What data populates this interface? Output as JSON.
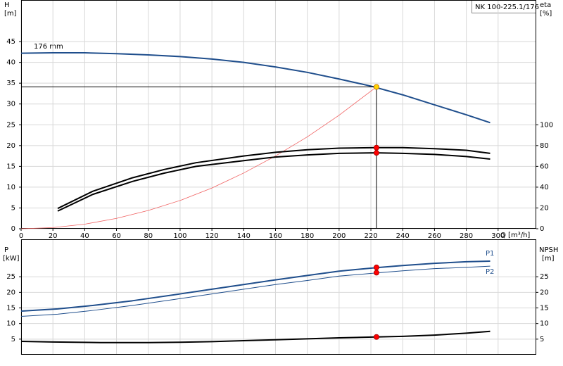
{
  "header": {
    "model": "NK 100-225.1/176"
  },
  "chart_data": [
    {
      "type": "line",
      "ylabel": "H",
      "yunit": "[m]",
      "y2label": "eta",
      "y2unit": "[%]",
      "xlabel": "Q [m³/h]",
      "xlim": [
        0,
        324
      ],
      "xticks": [
        0,
        20,
        40,
        60,
        80,
        100,
        120,
        140,
        160,
        180,
        200,
        220,
        240,
        260,
        280,
        300
      ],
      "ylim": [
        0,
        55
      ],
      "yticks": [
        0,
        5,
        10,
        15,
        20,
        25,
        30,
        35,
        40,
        45
      ],
      "y2lim": [
        0,
        220
      ],
      "y2ticks": [
        0,
        20,
        40,
        60,
        80,
        100
      ],
      "grid": true,
      "series": [
        {
          "name": "176 mm",
          "color": "#1f4e8c",
          "width": 2,
          "x": [
            0,
            20,
            40,
            60,
            80,
            100,
            120,
            140,
            160,
            180,
            200,
            220,
            240,
            260,
            280,
            295
          ],
          "values": [
            42.2,
            42.3,
            42.3,
            42.1,
            41.8,
            41.4,
            40.8,
            40.0,
            38.9,
            37.6,
            36.0,
            34.3,
            32.2,
            29.8,
            27.4,
            25.5
          ]
        },
        {
          "color": "#f06060",
          "width": 0.8,
          "x": [
            0,
            20,
            40,
            60,
            80,
            100,
            120,
            140,
            160,
            180,
            200,
            223.5
          ],
          "values": [
            0,
            0.27,
            1.1,
            2.5,
            4.4,
            6.8,
            9.8,
            13.4,
            17.5,
            22.1,
            27.3,
            34.1
          ]
        },
        {
          "color": "#000000",
          "width": 2,
          "axis": "y2",
          "x": [
            23,
            45,
            70,
            90,
            110,
            140,
            160,
            180,
            200,
            223,
            240,
            260,
            280,
            295
          ],
          "values": [
            19.5,
            36,
            49,
            57,
            63.5,
            70,
            73.5,
            76,
            77.5,
            78,
            78,
            77,
            75.5,
            72.5
          ]
        },
        {
          "color": "#000000",
          "width": 2,
          "axis": "y2",
          "x": [
            23,
            45,
            70,
            90,
            110,
            140,
            160,
            180,
            200,
            223,
            240,
            260,
            280,
            295
          ],
          "values": [
            17,
            33,
            45.5,
            53.5,
            60,
            65.5,
            69,
            71,
            72.5,
            73,
            72.5,
            71.5,
            69.5,
            67
          ]
        },
        {
          "style": "guide",
          "color": "#000000",
          "width": 1,
          "x": [
            0,
            223.5,
            223.5
          ],
          "values": [
            34.1,
            34.1,
            0
          ]
        },
        {
          "style": "markers",
          "color": "#ffd400",
          "x": [
            223.5
          ],
          "values": [
            34.1
          ]
        },
        {
          "style": "markers",
          "color": "#ff0000",
          "axis": "y2",
          "x": [
            223.5,
            223.5
          ],
          "values": [
            78,
            73
          ]
        }
      ]
    },
    {
      "type": "line",
      "ylabel": "P",
      "yunit": "[kW]",
      "y2label": "NPSH",
      "y2unit": "[m]",
      "ylim": [
        0,
        37
      ],
      "yticks": [
        5,
        10,
        15,
        20,
        25
      ],
      "y2lim": [
        0,
        37
      ],
      "y2ticks": [
        5,
        10,
        15,
        20,
        25
      ],
      "grid": true,
      "series": [
        {
          "name": "P1",
          "color": "#1f4e8c",
          "width": 2,
          "x": [
            0,
            23,
            45,
            70,
            100,
            120,
            140,
            160,
            180,
            200,
            223,
            240,
            260,
            280,
            295
          ],
          "values": [
            14,
            14.7,
            15.8,
            17.3,
            19.5,
            21,
            22.5,
            24,
            25.4,
            26.8,
            27.9,
            28.6,
            29.3,
            29.8,
            30
          ]
        },
        {
          "name": "P2",
          "color": "#1f4e8c",
          "width": 1,
          "x": [
            0,
            23,
            45,
            70,
            100,
            120,
            140,
            160,
            180,
            200,
            223,
            240,
            260,
            280,
            295
          ],
          "values": [
            12.3,
            13,
            14.2,
            15.8,
            18,
            19.5,
            21,
            22.5,
            23.8,
            25.2,
            26.2,
            26.9,
            27.6,
            28.0,
            28.4
          ]
        },
        {
          "color": "#000000",
          "width": 2,
          "axis": "y2",
          "x": [
            0,
            20,
            50,
            80,
            100,
            120,
            140,
            160,
            180,
            200,
            223,
            240,
            260,
            280,
            295
          ],
          "values": [
            4.3,
            4.1,
            3.9,
            3.9,
            4.0,
            4.2,
            4.5,
            4.8,
            5.1,
            5.4,
            5.7,
            5.9,
            6.3,
            6.9,
            7.5
          ]
        },
        {
          "style": "markers",
          "color": "#ff0000",
          "x": [
            223.5,
            223.5
          ],
          "values": [
            28,
            26.3
          ]
        },
        {
          "style": "markers",
          "color": "#ff0000",
          "axis": "y2",
          "x": [
            223.5
          ],
          "values": [
            5.7
          ]
        }
      ]
    }
  ]
}
